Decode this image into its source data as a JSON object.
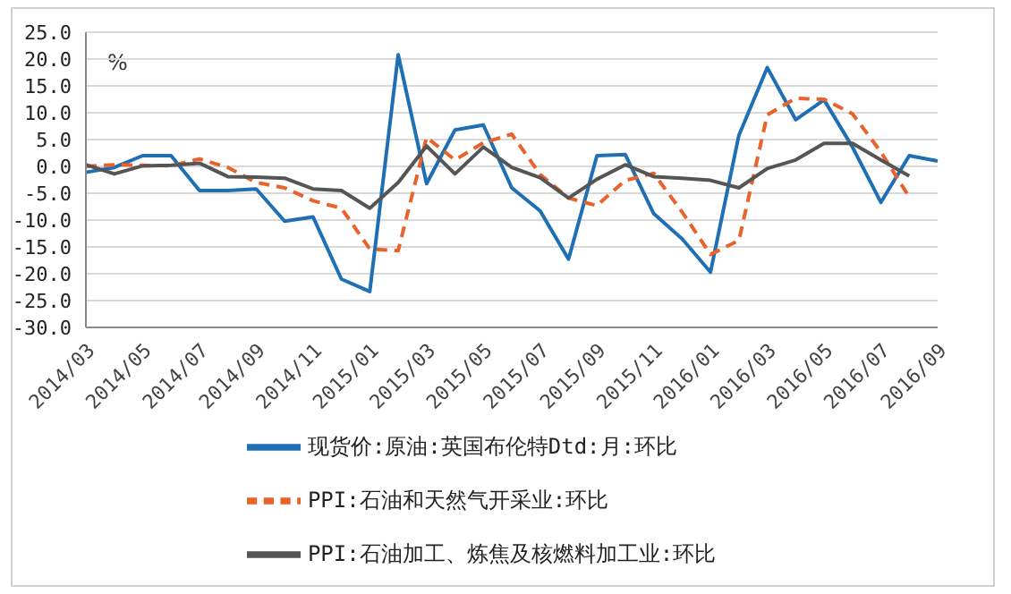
{
  "chart_data": {
    "type": "line",
    "ylabel": "%",
    "categories": [
      "2014/03",
      null,
      "2014/05",
      null,
      "2014/07",
      null,
      "2014/09",
      null,
      "2014/11",
      null,
      "2015/01",
      null,
      "2015/03",
      null,
      "2015/05",
      null,
      "2015/07",
      null,
      "2015/09",
      null,
      "2015/11",
      null,
      "2016/01",
      null,
      "2016/03",
      null,
      "2016/05",
      null,
      "2016/07",
      null,
      "2016/09"
    ],
    "series": [
      {
        "name": "现货价:原油:英国布伦特Dtd:月:环比",
        "color": "#1f6fb5",
        "line_style": "solid",
        "values": [
          -1.1,
          -0.2,
          2.0,
          2.0,
          -4.5,
          -4.5,
          -4.2,
          -10.2,
          -9.4,
          -21.0,
          -23.3,
          20.8,
          -3.2,
          6.8,
          7.7,
          -4.0,
          -8.3,
          -17.3,
          2.0,
          2.2,
          -8.8,
          -13.5,
          -19.7,
          5.8,
          18.4,
          8.7,
          12.4,
          3.6,
          -6.7,
          2.0,
          1.0
        ]
      },
      {
        "name": "PPI:石油和天然气开采业:环比",
        "color": "#e8622a",
        "line_style": "dashed",
        "values": [
          0.0,
          0.3,
          0.2,
          0.1,
          1.4,
          -0.2,
          -3.0,
          -4.0,
          -6.4,
          -7.8,
          -15.4,
          -15.7,
          5.4,
          1.2,
          4.4,
          6.0,
          -1.5,
          -5.9,
          -7.3,
          -2.6,
          -1.3,
          -8.5,
          -16.4,
          -13.8,
          9.6,
          12.7,
          12.5,
          9.8,
          2.7,
          -5.7,
          null
        ]
      },
      {
        "name": "PPI:石油加工、炼焦及核燃料加工业:环比",
        "color": "#555555",
        "line_style": "solid",
        "values": [
          0.3,
          -1.4,
          0.1,
          0.2,
          0.6,
          -1.9,
          -2.0,
          -2.2,
          -4.2,
          -4.5,
          -7.8,
          -3.0,
          3.8,
          -1.4,
          3.6,
          -0.2,
          -2.1,
          -5.9,
          -2.4,
          0.3,
          -1.9,
          -2.2,
          -2.6,
          -4.0,
          -0.4,
          1.2,
          4.3,
          4.3,
          1.2,
          -1.8,
          null
        ]
      }
    ],
    "ylim": [
      -30,
      25
    ],
    "yticks": [
      {
        "value": -30,
        "label": "-30.0"
      },
      {
        "value": -25,
        "label": "-25.0"
      },
      {
        "value": -20,
        "label": "-20.0"
      },
      {
        "value": -15,
        "label": "-15.0"
      },
      {
        "value": -10,
        "label": "-10.0"
      },
      {
        "value": -5,
        "label": "-5.0"
      },
      {
        "value": 0,
        "label": "0.0"
      },
      {
        "value": 5,
        "label": "5.0"
      },
      {
        "value": 10,
        "label": "10.0"
      },
      {
        "value": 15,
        "label": "15.0"
      },
      {
        "value": 20,
        "label": "20.0"
      },
      {
        "value": 25,
        "label": "25.0"
      }
    ],
    "grid": "y",
    "legend": "bottom",
    "marker": "none"
  }
}
